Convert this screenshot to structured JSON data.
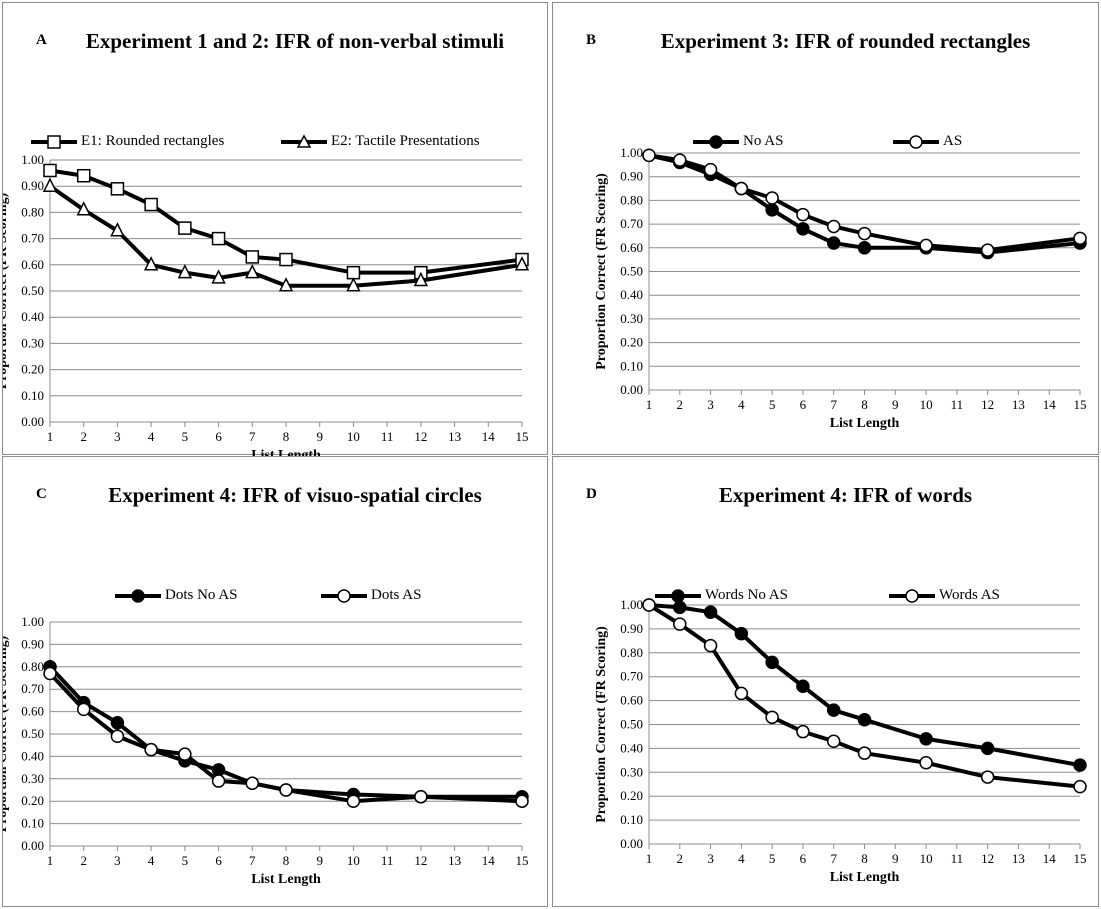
{
  "chart_data": [
    {
      "id": "A",
      "type": "line",
      "panel_letter": "A",
      "title": "Experiment 1 and 2: IFR of non-verbal stimuli",
      "xlabel": "List Length",
      "ylabel": "Proportion Correct (FR Scoring)",
      "xlim": [
        1,
        15
      ],
      "ylim": [
        0,
        1
      ],
      "x_ticks": [
        1,
        2,
        3,
        4,
        5,
        6,
        7,
        8,
        9,
        10,
        11,
        12,
        13,
        14,
        15
      ],
      "y_ticks": [
        "0.00",
        "0.10",
        "0.20",
        "0.30",
        "0.40",
        "0.50",
        "0.60",
        "0.70",
        "0.80",
        "0.90",
        "1.00"
      ],
      "grid": "horizontal",
      "legend_position": "top",
      "x": [
        1,
        2,
        3,
        4,
        5,
        6,
        7,
        8,
        10,
        12,
        15
      ],
      "series": [
        {
          "name": "E1: Rounded rectangles",
          "marker": "square",
          "values": [
            0.96,
            0.94,
            0.89,
            0.83,
            0.74,
            0.7,
            0.63,
            0.62,
            0.57,
            0.57,
            0.62
          ]
        },
        {
          "name": "E2: Tactile Presentations",
          "marker": "triangle",
          "values": [
            0.9,
            0.81,
            0.73,
            0.6,
            0.57,
            0.55,
            0.57,
            0.52,
            0.52,
            0.54,
            0.6
          ]
        }
      ]
    },
    {
      "id": "B",
      "type": "line",
      "panel_letter": "B",
      "title": "Experiment 3: IFR of rounded rectangles",
      "xlabel": "List Length",
      "ylabel": "Proportion Correct (FR Scoring)",
      "xlim": [
        1,
        15
      ],
      "ylim": [
        0,
        1
      ],
      "x_ticks": [
        1,
        2,
        3,
        4,
        5,
        6,
        7,
        8,
        9,
        10,
        11,
        12,
        13,
        14,
        15
      ],
      "y_ticks": [
        "0.00",
        "0.10",
        "0.20",
        "0.30",
        "0.40",
        "0.50",
        "0.60",
        "0.70",
        "0.80",
        "0.90",
        "1.00"
      ],
      "grid": "horizontal",
      "legend_position": "top",
      "x": [
        1,
        2,
        3,
        4,
        5,
        6,
        7,
        8,
        10,
        12,
        15
      ],
      "series": [
        {
          "name": "No AS",
          "marker": "filled-circle",
          "values": [
            0.99,
            0.96,
            0.91,
            0.85,
            0.76,
            0.68,
            0.62,
            0.6,
            0.6,
            0.58,
            0.62
          ]
        },
        {
          "name": "AS",
          "marker": "open-circle",
          "values": [
            0.99,
            0.97,
            0.93,
            0.85,
            0.81,
            0.74,
            0.69,
            0.66,
            0.61,
            0.59,
            0.64
          ]
        }
      ]
    },
    {
      "id": "C",
      "type": "line",
      "panel_letter": "C",
      "title": "Experiment 4: IFR of visuo-spatial circles",
      "xlabel": "List Length",
      "ylabel": "Proportion Correct (FR Scoring)",
      "xlim": [
        1,
        15
      ],
      "ylim": [
        0,
        1
      ],
      "x_ticks": [
        1,
        2,
        3,
        4,
        5,
        6,
        7,
        8,
        9,
        10,
        11,
        12,
        13,
        14,
        15
      ],
      "y_ticks": [
        "0.00",
        "0.10",
        "0.20",
        "0.30",
        "0.40",
        "0.50",
        "0.60",
        "0.70",
        "0.80",
        "0.90",
        "1.00"
      ],
      "grid": "horizontal",
      "legend_position": "top",
      "x": [
        1,
        2,
        3,
        4,
        5,
        6,
        7,
        8,
        10,
        12,
        15
      ],
      "series": [
        {
          "name": "Dots No AS",
          "marker": "filled-circle",
          "values": [
            0.8,
            0.64,
            0.55,
            0.43,
            0.38,
            0.34,
            0.28,
            0.25,
            0.23,
            0.22,
            0.22
          ]
        },
        {
          "name": "Dots AS",
          "marker": "open-circle",
          "values": [
            0.77,
            0.61,
            0.49,
            0.43,
            0.41,
            0.29,
            0.28,
            0.25,
            0.2,
            0.22,
            0.2
          ]
        }
      ]
    },
    {
      "id": "D",
      "type": "line",
      "panel_letter": "D",
      "title": "Experiment 4: IFR of words",
      "xlabel": "List Length",
      "ylabel": "Proportion Correct (FR Scoring)",
      "xlim": [
        1,
        15
      ],
      "ylim": [
        0,
        1
      ],
      "x_ticks": [
        1,
        2,
        3,
        4,
        5,
        6,
        7,
        8,
        9,
        10,
        11,
        12,
        13,
        14,
        15
      ],
      "y_ticks": [
        "0.00",
        "0.10",
        "0.20",
        "0.30",
        "0.40",
        "0.50",
        "0.60",
        "0.70",
        "0.80",
        "0.90",
        "1.00"
      ],
      "grid": "horizontal",
      "legend_position": "top",
      "x": [
        1,
        2,
        3,
        4,
        5,
        6,
        7,
        8,
        10,
        12,
        15
      ],
      "series": [
        {
          "name": "Words No AS",
          "marker": "filled-circle",
          "values": [
            1.0,
            0.99,
            0.97,
            0.88,
            0.76,
            0.66,
            0.56,
            0.52,
            0.44,
            0.4,
            0.33
          ]
        },
        {
          "name": "Words AS",
          "marker": "open-circle",
          "values": [
            1.0,
            0.92,
            0.83,
            0.63,
            0.53,
            0.47,
            0.43,
            0.38,
            0.34,
            0.28,
            0.24
          ]
        }
      ]
    }
  ]
}
